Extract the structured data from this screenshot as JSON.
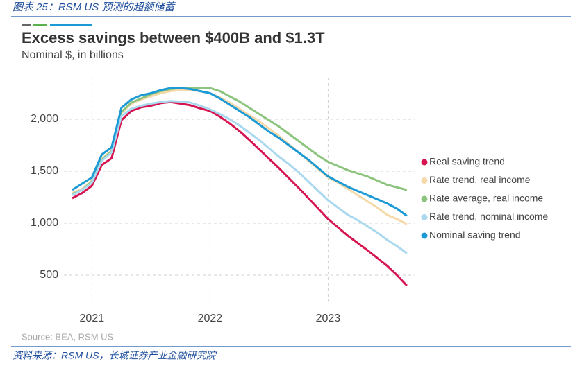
{
  "figure_caption": "图表 25：RSM US 预测的超额储蓄",
  "chart_data": {
    "type": "line",
    "title": "Excess savings between $400B and $1.3T",
    "subtitle": "Nominal $, in billions",
    "source": "Source: BEA, RSM US",
    "categories": [
      null,
      null,
      "2021",
      null,
      null,
      null,
      null,
      null,
      null,
      null,
      null,
      null,
      null,
      null,
      "2022",
      null,
      null,
      null,
      null,
      null,
      null,
      null,
      null,
      null,
      null,
      null,
      "2023",
      null,
      null,
      null,
      null,
      null,
      null,
      null,
      null
    ],
    "ylim": [
      250,
      2400
    ],
    "yticks": [
      {
        "value": 500,
        "label": "500"
      },
      {
        "value": 1000,
        "label": "1,000"
      },
      {
        "value": 1500,
        "label": "1,500"
      },
      {
        "value": 2000,
        "label": "2,000"
      }
    ],
    "grid": true,
    "legend": "right",
    "series": [
      {
        "name": "Real saving trend",
        "color": "#d6144f",
        "values": [
          1240,
          1290,
          1360,
          1560,
          1625,
          1990,
          2080,
          2115,
          2130,
          2155,
          2165,
          2150,
          2135,
          2105,
          2080,
          2025,
          1960,
          1885,
          1800,
          1710,
          1620,
          1530,
          1435,
          1340,
          1240,
          1140,
          1040,
          960,
          880,
          810,
          740,
          665,
          590,
          500,
          400
        ]
      },
      {
        "name": "Rate trend, real income",
        "color": "#f5d9a8",
        "values": [
          1290,
          1330,
          1410,
          1620,
          1700,
          2060,
          2150,
          2190,
          2220,
          2250,
          2270,
          2280,
          2280,
          2270,
          2250,
          2210,
          2160,
          2100,
          2040,
          1980,
          1910,
          1840,
          1760,
          1680,
          1600,
          1520,
          1440,
          1390,
          1330,
          1270,
          1210,
          1150,
          1080,
          1040,
          990
        ]
      },
      {
        "name": "Rate average, real income",
        "color": "#8cc47e",
        "values": [
          1280,
          1320,
          1400,
          1610,
          1690,
          2070,
          2160,
          2200,
          2240,
          2270,
          2290,
          2300,
          2300,
          2300,
          2300,
          2270,
          2220,
          2170,
          2110,
          2050,
          1990,
          1930,
          1860,
          1790,
          1720,
          1650,
          1590,
          1550,
          1510,
          1480,
          1450,
          1410,
          1370,
          1345,
          1320
        ]
      },
      {
        "name": "Rate trend, nominal income",
        "color": "#a9d8ef",
        "values": [
          1270,
          1320,
          1390,
          1600,
          1680,
          2030,
          2100,
          2130,
          2150,
          2165,
          2175,
          2170,
          2160,
          2130,
          2095,
          2050,
          2000,
          1940,
          1870,
          1800,
          1720,
          1640,
          1570,
          1490,
          1400,
          1310,
          1220,
          1150,
          1080,
          1030,
          970,
          910,
          840,
          780,
          710
        ]
      },
      {
        "name": "Nominal saving trend",
        "color": "#1b9ad6",
        "values": [
          1320,
          1380,
          1440,
          1660,
          1730,
          2110,
          2190,
          2230,
          2250,
          2280,
          2300,
          2300,
          2290,
          2270,
          2250,
          2200,
          2140,
          2080,
          2020,
          1950,
          1880,
          1820,
          1750,
          1680,
          1610,
          1530,
          1450,
          1400,
          1350,
          1310,
          1270,
          1230,
          1190,
          1140,
          1070
        ]
      }
    ]
  },
  "footer": "资料来源：RSM US，长城证券产业金融研究院"
}
